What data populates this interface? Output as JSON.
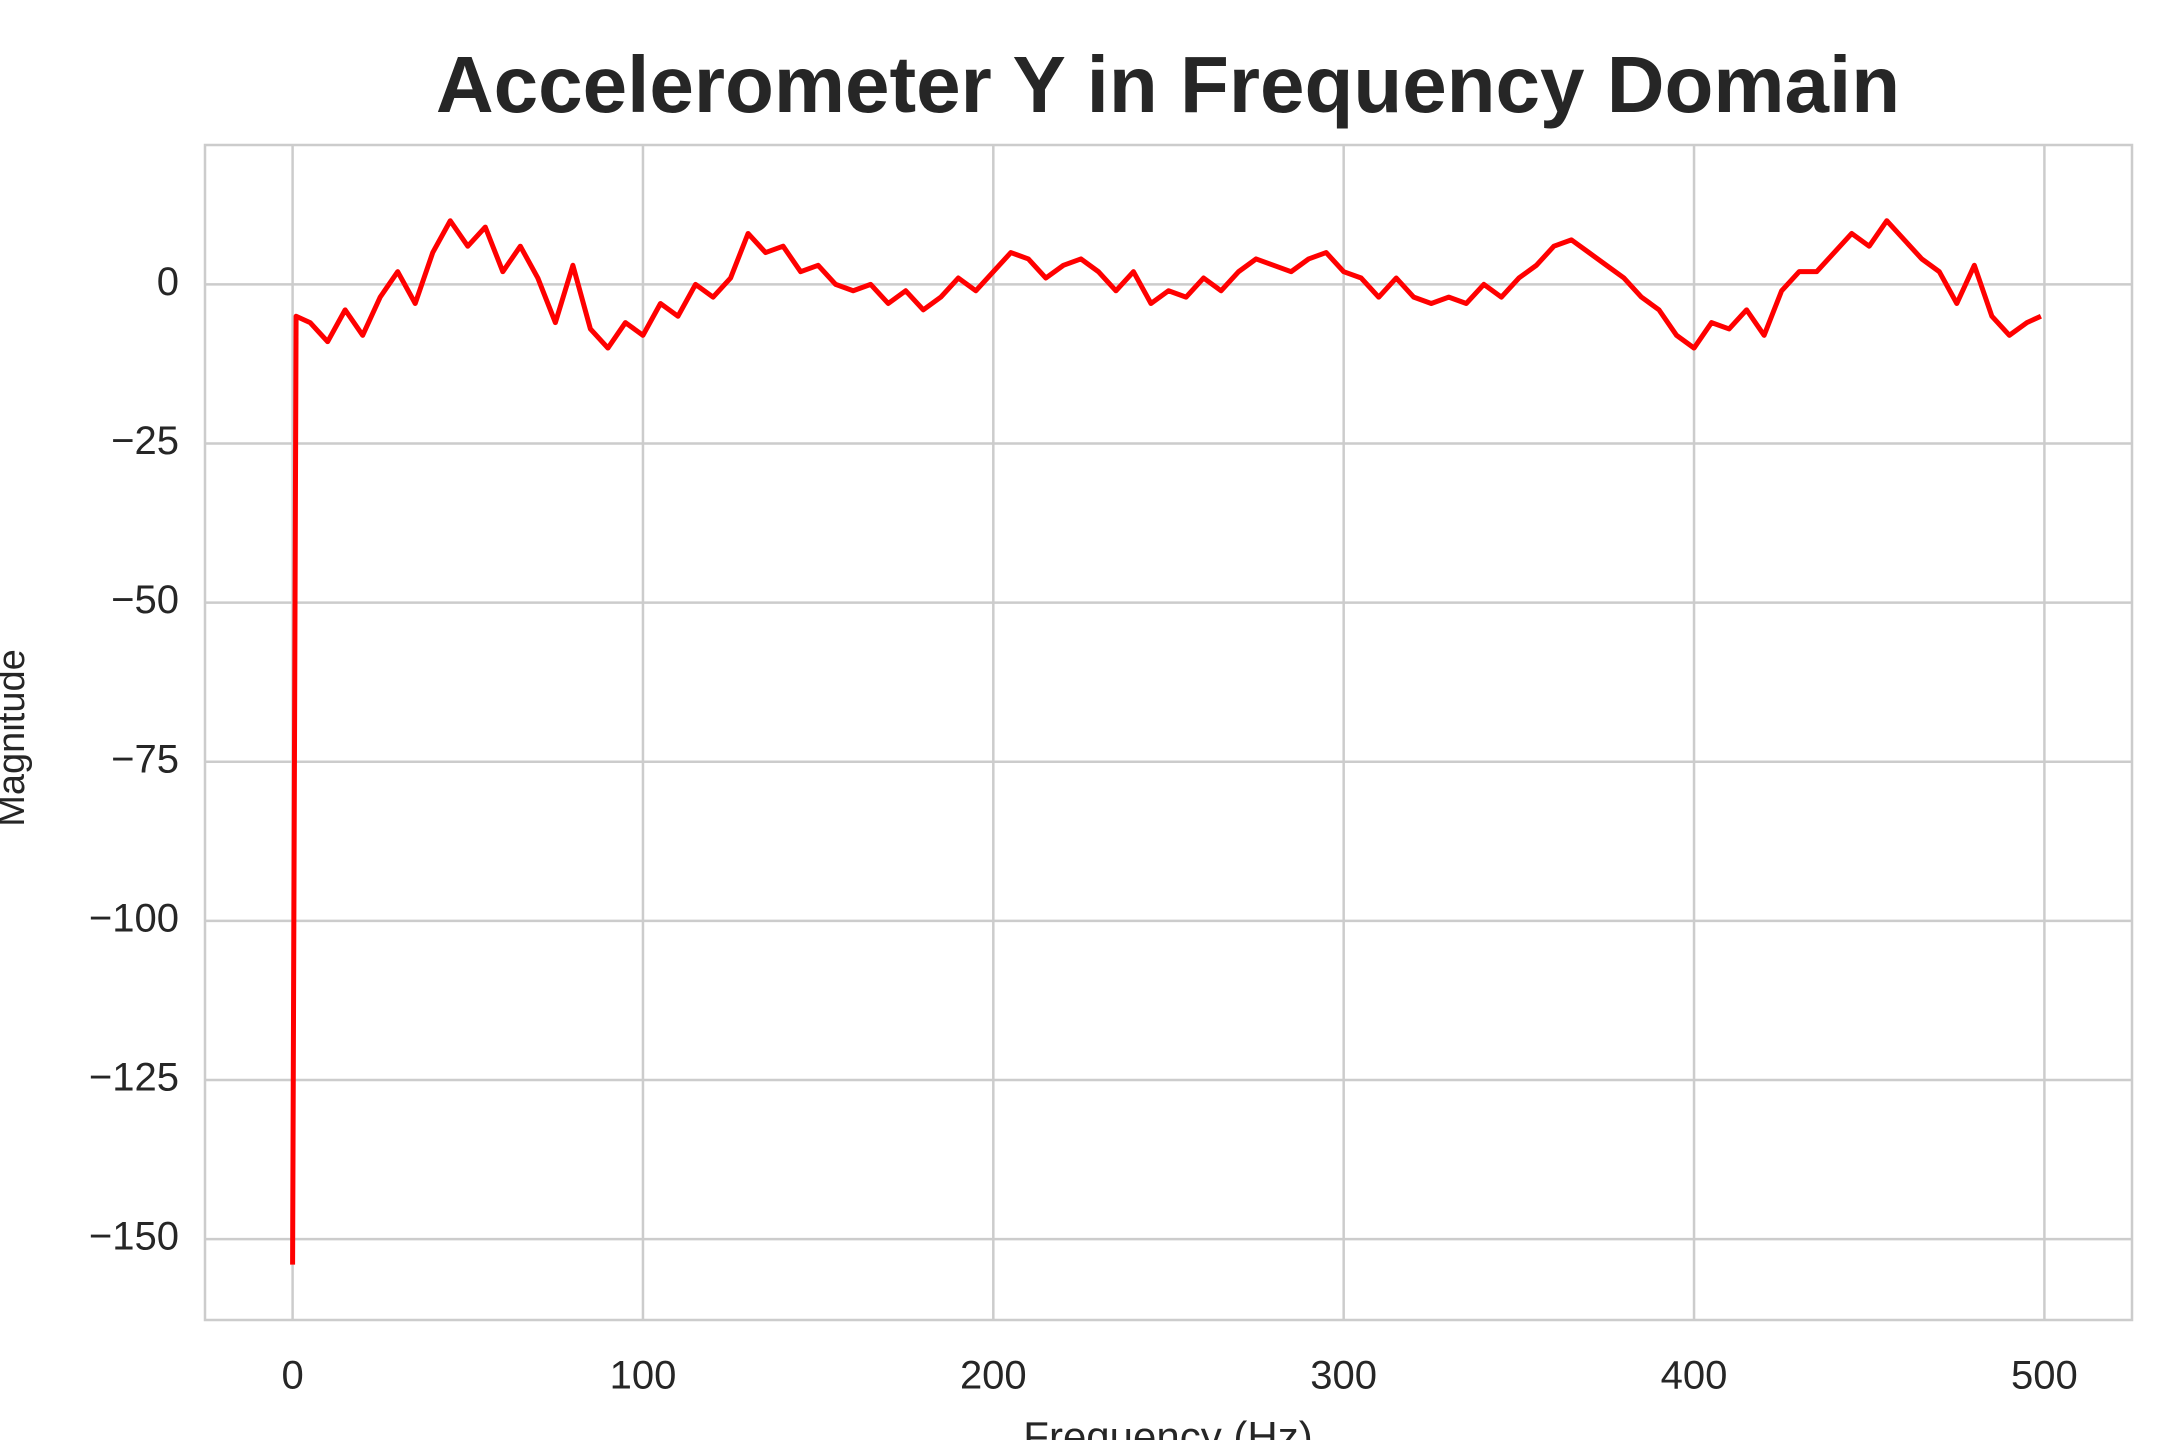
{
  "chart_data": {
    "type": "line",
    "title": "Accelerometer Y in Frequency Domain",
    "xlabel": "Frequency (Hz)",
    "ylabel": "Magnitude",
    "x": [
      0,
      1,
      5,
      10,
      15,
      20,
      25,
      30,
      35,
      40,
      45,
      50,
      55,
      60,
      65,
      70,
      75,
      80,
      85,
      90,
      95,
      100,
      105,
      110,
      115,
      120,
      125,
      130,
      135,
      140,
      145,
      150,
      155,
      160,
      165,
      170,
      175,
      180,
      185,
      190,
      195,
      200,
      205,
      210,
      215,
      220,
      225,
      230,
      235,
      240,
      245,
      250,
      255,
      260,
      265,
      270,
      275,
      280,
      285,
      290,
      295,
      300,
      305,
      310,
      315,
      320,
      325,
      330,
      335,
      340,
      345,
      350,
      355,
      360,
      365,
      370,
      375,
      380,
      385,
      390,
      395,
      400,
      405,
      410,
      415,
      420,
      425,
      430,
      435,
      440,
      445,
      450,
      455,
      460,
      465,
      470,
      475,
      480,
      485,
      490,
      495,
      499
    ],
    "values": [
      -154,
      -5,
      -6,
      -9,
      -4,
      -8,
      -2,
      2,
      -3,
      5,
      10,
      6,
      9,
      2,
      6,
      1,
      -6,
      3,
      -7,
      -10,
      -6,
      -8,
      -3,
      -5,
      0,
      -2,
      1,
      8,
      5,
      6,
      2,
      3,
      0,
      -1,
      0,
      -3,
      -1,
      -4,
      -2,
      1,
      -1,
      2,
      5,
      4,
      1,
      3,
      4,
      2,
      -1,
      2,
      -3,
      -1,
      -2,
      1,
      -1,
      2,
      4,
      3,
      2,
      4,
      5,
      2,
      1,
      -2,
      1,
      -2,
      -3,
      -2,
      -3,
      0,
      -2,
      1,
      3,
      6,
      7,
      5,
      3,
      1,
      -2,
      -4,
      -8,
      -10,
      -6,
      -7,
      -4,
      -8,
      -1,
      2,
      2,
      5,
      8,
      6,
      10,
      7,
      4,
      2,
      -3,
      3,
      -5,
      -8,
      -6,
      -5
    ],
    "color": "#ff0000",
    "xlim": [
      -25,
      525
    ],
    "ylim": [
      -162.7,
      21.9
    ],
    "xticks": [
      0,
      100,
      200,
      300,
      400,
      500
    ],
    "yticks": [
      0,
      {
        "value": -25,
        "label": "−25"
      },
      {
        "value": -50,
        "label": "−50"
      },
      {
        "value": -75,
        "label": "−75"
      },
      {
        "value": -100,
        "label": "−100"
      },
      {
        "value": -125,
        "label": "−125"
      },
      {
        "value": -150,
        "label": "−150"
      }
    ],
    "grid": true
  }
}
